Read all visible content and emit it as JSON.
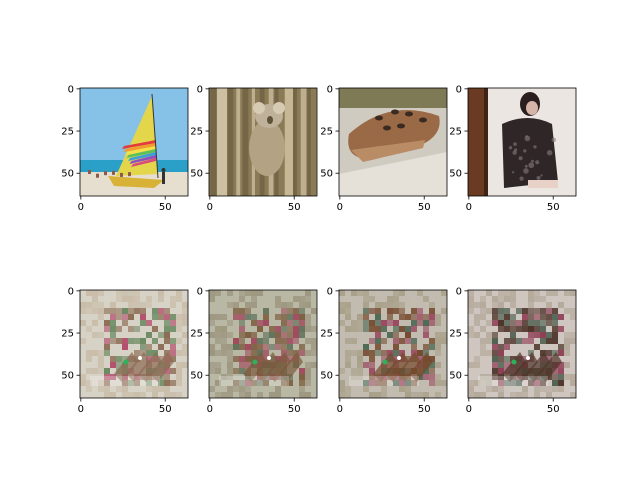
{
  "chart_data": {
    "type": "heatmap",
    "layout": "2x4 grid of image panels (imshow)",
    "image_size": [
      64,
      64
    ],
    "axes": [
      {
        "row": 0,
        "col": 0,
        "content": "sailboat with rainbow sail on beach",
        "palette": {
          "bg": "#86c1e8",
          "main": "#e3d64a",
          "accent": "#d94b7a",
          "accent2": "#2aa0c8",
          "ground": "#e6dfcf"
        }
      },
      {
        "row": 0,
        "col": 1,
        "content": "koala climbing tree trunks",
        "palette": {
          "bg": "#8a7a55",
          "main": "#b3a283",
          "accent": "#5e5238",
          "accent2": "#cbbd9d",
          "ground": "#6f6244"
        }
      },
      {
        "row": 0,
        "col": 2,
        "content": "ceramic ocarina on wooden surface",
        "palette": {
          "bg": "#cfcbc0",
          "main": "#9a6a46",
          "accent": "#3b2a22",
          "accent2": "#b98c66",
          "ground": "#a99f8e"
        }
      },
      {
        "row": 0,
        "col": 3,
        "content": "girl in dark dress sitting against wall",
        "palette": {
          "bg": "#ece6e3",
          "main": "#2f2628",
          "accent": "#6b3a22",
          "accent2": "#d6b4a8",
          "ground": "#e9dedb"
        }
      },
      {
        "row": 1,
        "col": 0,
        "content": "reconstruction 1 (noisy sailboat-like)",
        "palette": {
          "bg": "#d7d2c6",
          "main": "#8b6a52",
          "accent": "#b04a6a",
          "accent2": "#6b8a62",
          "ground": "#c9bda9"
        }
      },
      {
        "row": 1,
        "col": 1,
        "content": "reconstruction 2",
        "palette": {
          "bg": "#b8b8a4",
          "main": "#7a5a3c",
          "accent": "#a04a5e",
          "accent2": "#5c6f58",
          "ground": "#9d9680"
        }
      },
      {
        "row": 1,
        "col": 2,
        "content": "reconstruction 3",
        "palette": {
          "bg": "#c2bcb0",
          "main": "#74482c",
          "accent": "#9a4860",
          "accent2": "#4f6a55",
          "ground": "#a9a089"
        }
      },
      {
        "row": 1,
        "col": 3,
        "content": "reconstruction 4",
        "palette": {
          "bg": "#cfc6c0",
          "main": "#4e342a",
          "accent": "#8e3e55",
          "accent2": "#4a5c4c",
          "ground": "#b4a99a"
        }
      }
    ],
    "x_ticks": [
      "0",
      "50"
    ],
    "y_ticks": [
      "0",
      "25",
      "50"
    ],
    "xlim": [
      -0.5,
      63.5
    ],
    "ylim": [
      63.5,
      -0.5
    ]
  }
}
